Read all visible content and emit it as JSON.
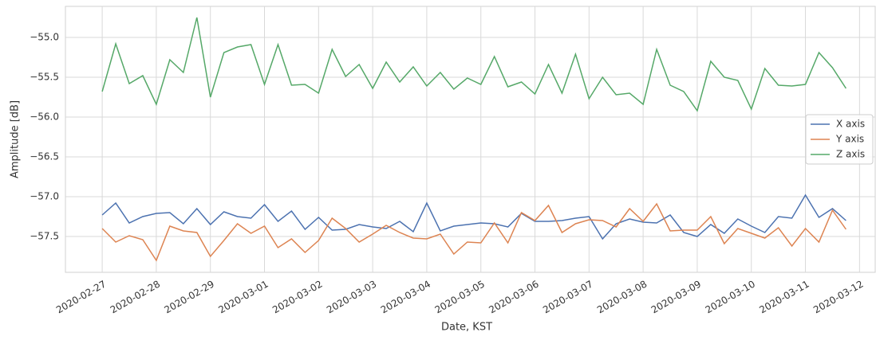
{
  "chart_data": {
    "type": "line",
    "x_label": "Date, KST",
    "y_label": "Amplitude [dB]",
    "x": [
      0,
      0.25,
      0.5,
      0.75,
      1,
      1.25,
      1.5,
      1.75,
      2,
      2.25,
      2.5,
      2.75,
      3,
      3.25,
      3.5,
      3.75,
      4,
      4.25,
      4.5,
      4.75,
      5,
      5.25,
      5.5,
      5.75,
      6,
      6.25,
      6.5,
      6.75,
      7,
      7.25,
      7.5,
      7.75,
      8,
      8.25,
      8.5,
      8.75,
      9,
      9.25,
      9.5,
      9.75,
      10,
      10.25,
      10.5,
      10.75,
      11,
      11.25,
      11.5,
      11.75,
      12,
      12.25,
      12.5,
      12.75,
      13,
      13.25,
      13.5,
      13.75
    ],
    "xlim": [
      -0.68,
      14.29
    ],
    "xticks": [
      {
        "value": 0,
        "label": "2020-02-27"
      },
      {
        "value": 1,
        "label": "2020-02-28"
      },
      {
        "value": 2,
        "label": "2020-02-29"
      },
      {
        "value": 3,
        "label": "2020-03-01"
      },
      {
        "value": 4,
        "label": "2020-03-02"
      },
      {
        "value": 5,
        "label": "2020-03-03"
      },
      {
        "value": 6,
        "label": "2020-03-04"
      },
      {
        "value": 7,
        "label": "2020-03-05"
      },
      {
        "value": 8,
        "label": "2020-03-06"
      },
      {
        "value": 9,
        "label": "2020-03-07"
      },
      {
        "value": 10,
        "label": "2020-03-08"
      },
      {
        "value": 11,
        "label": "2020-03-09"
      },
      {
        "value": 12,
        "label": "2020-03-10"
      },
      {
        "value": 13,
        "label": "2020-03-11"
      },
      {
        "value": 14,
        "label": "2020-03-12"
      }
    ],
    "ylim": [
      -57.95,
      -54.61
    ],
    "yticks": [
      {
        "value": -57.5,
        "label": "−57.5"
      },
      {
        "value": -57,
        "label": "−57.0"
      },
      {
        "value": -56.5,
        "label": "−56.5"
      },
      {
        "value": -56,
        "label": "−56.0"
      },
      {
        "value": -55.5,
        "label": "−55.5"
      },
      {
        "value": -55,
        "label": "−55.0"
      }
    ],
    "grid": true,
    "legend_position": "center right",
    "series": [
      {
        "name": "X axis",
        "color": "#4c72b0",
        "values": [
          -57.23,
          -57.08,
          -57.33,
          -57.25,
          -57.21,
          -57.2,
          -57.34,
          -57.15,
          -57.35,
          -57.19,
          -57.25,
          -57.27,
          -57.1,
          -57.31,
          -57.18,
          -57.41,
          -57.26,
          -57.42,
          -57.41,
          -57.35,
          -57.38,
          -57.4,
          -57.31,
          -57.44,
          -57.08,
          -57.43,
          -57.37,
          -57.35,
          -57.33,
          -57.34,
          -57.38,
          -57.21,
          -57.31,
          -57.31,
          -57.3,
          -57.27,
          -57.25,
          -57.53,
          -57.34,
          -57.28,
          -57.32,
          -57.33,
          -57.23,
          -57.45,
          -57.5,
          -57.35,
          -57.46,
          -57.28,
          -57.37,
          -57.45,
          -57.25,
          -57.27,
          -56.98,
          -57.26,
          -57.15,
          -57.3
        ]
      },
      {
        "name": "Y axis",
        "color": "#dd8452",
        "values": [
          -57.4,
          -57.57,
          -57.49,
          -57.54,
          -57.8,
          -57.37,
          -57.43,
          -57.45,
          -57.75,
          -57.55,
          -57.34,
          -57.46,
          -57.37,
          -57.64,
          -57.53,
          -57.7,
          -57.55,
          -57.27,
          -57.4,
          -57.57,
          -57.47,
          -57.36,
          -57.45,
          -57.52,
          -57.53,
          -57.47,
          -57.72,
          -57.57,
          -57.58,
          -57.33,
          -57.58,
          -57.2,
          -57.3,
          -57.11,
          -57.45,
          -57.34,
          -57.29,
          -57.3,
          -57.38,
          -57.15,
          -57.31,
          -57.09,
          -57.43,
          -57.42,
          -57.42,
          -57.25,
          -57.59,
          -57.4,
          -57.46,
          -57.52,
          -57.39,
          -57.62,
          -57.4,
          -57.57,
          -57.17,
          -57.41
        ]
      },
      {
        "name": "Z axis",
        "color": "#55a868",
        "values": [
          -55.68,
          -55.08,
          -55.58,
          -55.48,
          -55.84,
          -55.28,
          -55.44,
          -54.75,
          -55.75,
          -55.19,
          -55.12,
          -55.09,
          -55.59,
          -55.09,
          -55.6,
          -55.59,
          -55.7,
          -55.15,
          -55.49,
          -55.34,
          -55.64,
          -55.31,
          -55.56,
          -55.37,
          -55.61,
          -55.44,
          -55.65,
          -55.51,
          -55.59,
          -55.24,
          -55.62,
          -55.56,
          -55.71,
          -55.34,
          -55.7,
          -55.21,
          -55.77,
          -55.5,
          -55.72,
          -55.7,
          -55.84,
          -55.15,
          -55.6,
          -55.68,
          -55.92,
          -55.3,
          -55.5,
          -55.54,
          -55.9,
          -55.39,
          -55.6,
          -55.61,
          -55.59,
          -55.19,
          -55.38,
          -55.64
        ]
      }
    ]
  }
}
